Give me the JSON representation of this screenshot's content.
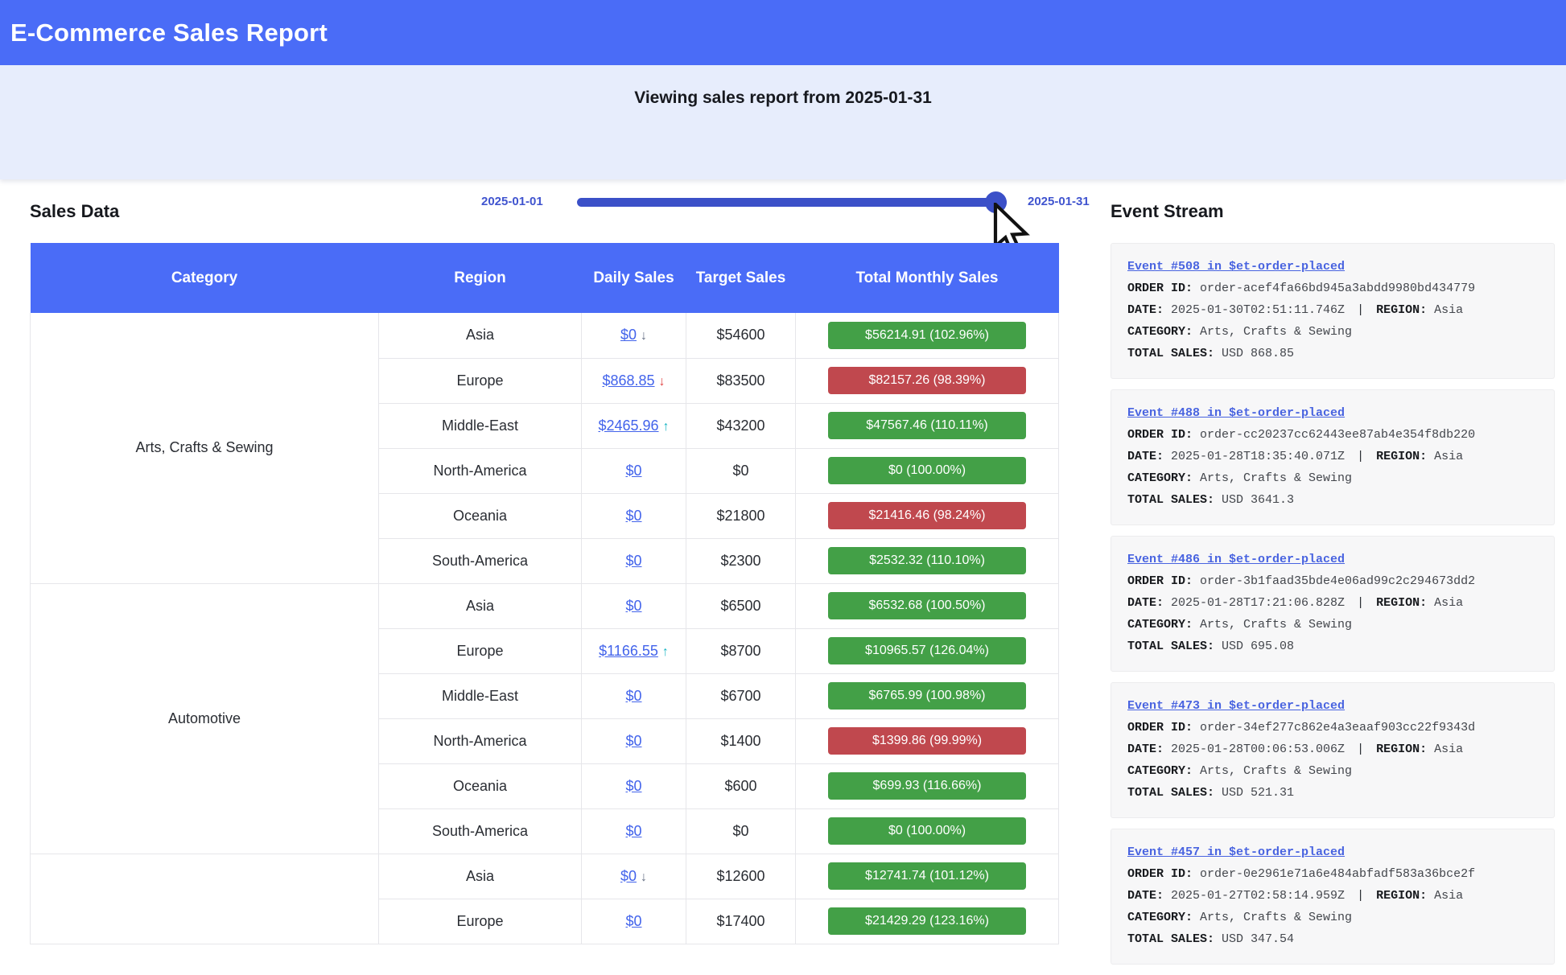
{
  "header": {
    "title": "E-Commerce Sales Report"
  },
  "slider": {
    "title": "Viewing sales report from 2025-01-31",
    "min_label": "2025-01-01",
    "max_label": "2025-01-31",
    "value": "2025-01-31",
    "position_pct": 97
  },
  "sales": {
    "heading": "Sales Data",
    "columns": [
      "Category",
      "Region",
      "Daily Sales",
      "Target Sales",
      "Total Monthly Sales"
    ],
    "groups": [
      {
        "category": "Arts, Crafts & Sewing",
        "rows": [
          {
            "region": "Asia",
            "daily": "$0",
            "arrow": "down",
            "target": "$54600",
            "badge": "$56214.91 (102.96%)",
            "badge_color": "green",
            "highlight": true
          },
          {
            "region": "Europe",
            "daily": "$868.85",
            "arrow": "down-red",
            "target": "$83500",
            "badge": "$82157.26 (98.39%)",
            "badge_color": "red",
            "highlight": false
          },
          {
            "region": "Middle-East",
            "daily": "$2465.96",
            "arrow": "up",
            "target": "$43200",
            "badge": "$47567.46 (110.11%)",
            "badge_color": "green",
            "highlight": false
          },
          {
            "region": "North-America",
            "daily": "$0",
            "arrow": null,
            "target": "$0",
            "badge": "$0 (100.00%)",
            "badge_color": "green",
            "highlight": false
          },
          {
            "region": "Oceania",
            "daily": "$0",
            "arrow": null,
            "target": "$21800",
            "badge": "$21416.46 (98.24%)",
            "badge_color": "red",
            "highlight": false
          },
          {
            "region": "South-America",
            "daily": "$0",
            "arrow": null,
            "target": "$2300",
            "badge": "$2532.32 (110.10%)",
            "badge_color": "green",
            "highlight": false
          }
        ]
      },
      {
        "category": "Automotive",
        "rows": [
          {
            "region": "Asia",
            "daily": "$0",
            "arrow": null,
            "target": "$6500",
            "badge": "$6532.68 (100.50%)",
            "badge_color": "green",
            "highlight": false
          },
          {
            "region": "Europe",
            "daily": "$1166.55",
            "arrow": "up",
            "target": "$8700",
            "badge": "$10965.57 (126.04%)",
            "badge_color": "green",
            "highlight": false
          },
          {
            "region": "Middle-East",
            "daily": "$0",
            "arrow": null,
            "target": "$6700",
            "badge": "$6765.99 (100.98%)",
            "badge_color": "green",
            "highlight": false
          },
          {
            "region": "North-America",
            "daily": "$0",
            "arrow": null,
            "target": "$1400",
            "badge": "$1399.86 (99.99%)",
            "badge_color": "red",
            "highlight": false
          },
          {
            "region": "Oceania",
            "daily": "$0",
            "arrow": null,
            "target": "$600",
            "badge": "$699.93 (116.66%)",
            "badge_color": "green",
            "highlight": false
          },
          {
            "region": "South-America",
            "daily": "$0",
            "arrow": null,
            "target": "$0",
            "badge": "$0 (100.00%)",
            "badge_color": "green",
            "highlight": false
          }
        ]
      },
      {
        "category": "",
        "rows": [
          {
            "region": "Asia",
            "daily": "$0",
            "arrow": "down",
            "target": "$12600",
            "badge": "$12741.74 (101.12%)",
            "badge_color": "green",
            "highlight": false
          },
          {
            "region": "Europe",
            "daily": "$0",
            "arrow": null,
            "target": "$17400",
            "badge": "$21429.29 (123.16%)",
            "badge_color": "green",
            "highlight": false
          }
        ]
      }
    ]
  },
  "events": {
    "heading": "Event Stream",
    "labels": {
      "order_id": "ORDER ID:",
      "date": "DATE:",
      "region": "REGION:",
      "category": "CATEGORY:",
      "total_sales": "TOTAL SALES:",
      "separator": "|"
    },
    "items": [
      {
        "title": "Event #508 in $et-order-placed",
        "order_id": "order-acef4fa66bd945a3abdd9980bd434779",
        "date": "2025-01-30T02:51:11.746Z",
        "region": "Asia",
        "category": "Arts, Crafts & Sewing",
        "total": "USD 868.85"
      },
      {
        "title": "Event #488 in $et-order-placed",
        "order_id": "order-cc20237cc62443ee87ab4e354f8db220",
        "date": "2025-01-28T18:35:40.071Z",
        "region": "Asia",
        "category": "Arts, Crafts & Sewing",
        "total": "USD 3641.3"
      },
      {
        "title": "Event #486 in $et-order-placed",
        "order_id": "order-3b1faad35bde4e06ad99c2c294673dd2",
        "date": "2025-01-28T17:21:06.828Z",
        "region": "Asia",
        "category": "Arts, Crafts & Sewing",
        "total": "USD 695.08"
      },
      {
        "title": "Event #473 in $et-order-placed",
        "order_id": "order-34ef277c862e4a3eaaf903cc22f9343d",
        "date": "2025-01-28T00:06:53.006Z",
        "region": "Asia",
        "category": "Arts, Crafts & Sewing",
        "total": "USD 521.31"
      },
      {
        "title": "Event #457 in $et-order-placed",
        "order_id": "order-0e2961e71a6e484abfadf583a36bce2f",
        "date": "2025-01-27T02:58:14.959Z",
        "region": "Asia",
        "category": "Arts, Crafts & Sewing",
        "total": "USD 347.54"
      }
    ]
  },
  "colors": {
    "accent_blue": "#4a6cf7",
    "slider_track_blue": "#3b50c8",
    "slider_label_blue": "#4054cf",
    "link_blue": "#4263eb",
    "badge_green": "#43a047",
    "badge_red": "#c0484e",
    "highlight_cell_blue": "#d9e4f8",
    "section_lavender": "#e7edfc",
    "event_card_bg": "#f7f7f8",
    "arrow_up_teal": "#18b5c4",
    "arrow_down_red": "#e14444",
    "arrow_down_gray": "#667085"
  }
}
